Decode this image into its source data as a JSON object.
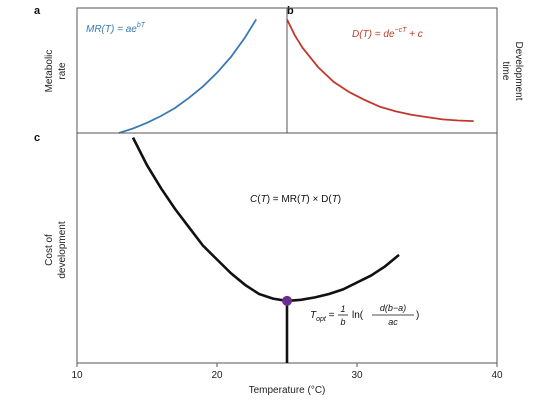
{
  "colors": {
    "metabolic": "#3a7ab5",
    "development": "#c0392b",
    "cost": "#111111",
    "optimum_marker": "#6a2d91",
    "frame": "#555555"
  },
  "chart_data": [
    {
      "panel": "a",
      "type": "line",
      "ylabel": [
        "Metabolic",
        "rate"
      ],
      "annotation": "MR(T) = ae^{bT}",
      "series": [
        {
          "name": "MR(T) = ae^{bT}",
          "color": "#3a7ab5",
          "x": [
            12,
            13,
            14,
            15,
            16,
            17,
            18,
            19,
            20,
            21,
            21.8
          ],
          "y": [
            0.0,
            0.04,
            0.09,
            0.15,
            0.22,
            0.31,
            0.41,
            0.53,
            0.67,
            0.84,
            1.0
          ]
        }
      ],
      "xlim": [
        10,
        40
      ],
      "ylim": [
        0,
        1.1
      ]
    },
    {
      "panel": "b",
      "type": "line",
      "ylabel": [
        "Development",
        "time"
      ],
      "annotation": "D(T) = de^{-cT} + c",
      "series": [
        {
          "name": "D(T) = de^{-cT} + c",
          "color": "#c0392b",
          "x": [
            10,
            10.5,
            11,
            12,
            13,
            14,
            15,
            16,
            17,
            18,
            19,
            20,
            21,
            22
          ],
          "y": [
            1.0,
            0.86,
            0.75,
            0.58,
            0.45,
            0.36,
            0.29,
            0.23,
            0.19,
            0.16,
            0.14,
            0.12,
            0.11,
            0.105
          ]
        }
      ],
      "xlim": [
        10,
        23
      ],
      "ylim": [
        0,
        1.1
      ]
    },
    {
      "panel": "c",
      "type": "line",
      "xlabel": "Temperature (°C)",
      "ylabel": [
        "Cost of",
        "development"
      ],
      "xticks": [
        10,
        20,
        30,
        40
      ],
      "xlim": [
        10,
        40
      ],
      "ylim": [
        0,
        1
      ],
      "annotation": "C(T) = MR(T) × D(T)",
      "optimum_formula": {
        "lhs": "T",
        "sub": "opt",
        "eq": " = ",
        "frac1_num": "1",
        "frac1_den": "b",
        "ln": " ln(",
        "frac2_num": "d(b−a)",
        "frac2_den": "ac",
        "close": ")"
      },
      "series": [
        {
          "name": "C(T) = MR(T) × D(T)",
          "color": "#111111",
          "x": [
            14,
            15,
            16,
            17,
            18,
            19,
            20,
            21,
            22,
            23,
            24,
            25,
            26,
            27,
            28,
            29,
            30,
            31,
            32,
            33
          ],
          "y": [
            0.98,
            0.86,
            0.76,
            0.67,
            0.59,
            0.51,
            0.45,
            0.39,
            0.34,
            0.3,
            0.28,
            0.27,
            0.275,
            0.285,
            0.3,
            0.32,
            0.35,
            0.38,
            0.42,
            0.47
          ]
        }
      ],
      "optimum": {
        "x": 25,
        "y": 0.27
      },
      "optimum_drop_to_y": 0.0
    }
  ]
}
